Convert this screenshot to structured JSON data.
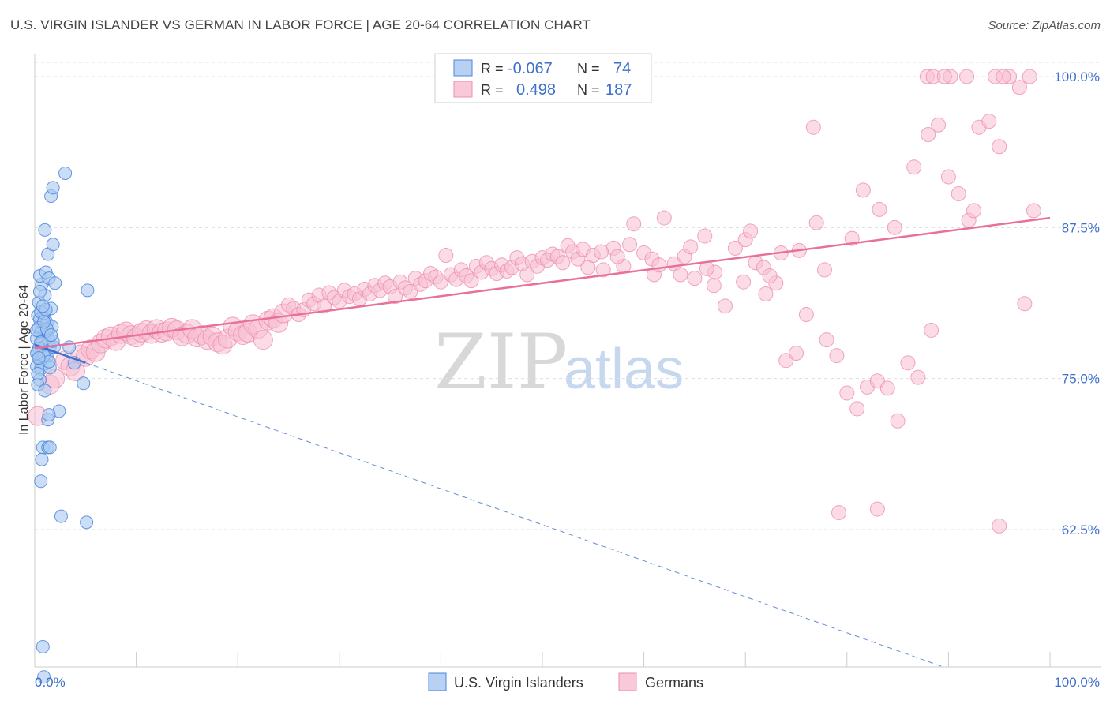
{
  "header": {
    "title": "U.S. VIRGIN ISLANDER VS GERMAN IN LABOR FORCE | AGE 20-64 CORRELATION CHART",
    "source": "Source: ZipAtlas.com"
  },
  "watermark": {
    "part1": "ZIP",
    "part2": "atlas"
  },
  "legend": {
    "rows": [
      {
        "r_label": "R =",
        "r_value": "-0.067",
        "n_label": "N =",
        "n_value": "74",
        "color": "#7aa9e8"
      },
      {
        "r_label": "R =",
        "r_value": "0.498",
        "n_label": "N =",
        "n_value": "187",
        "color": "#f4a6c0"
      }
    ],
    "bottom": [
      "U.S. Virgin Islanders",
      "Germans"
    ]
  },
  "colors": {
    "blue_fill": "#a9c8f0",
    "blue_stroke": "#4a86dc",
    "blue_line": "#3d6fcc",
    "pink_fill": "#f7bfd1",
    "pink_stroke": "#ee8db0",
    "pink_line": "#e8709a",
    "grid": "#dddddd",
    "tick_label": "#3d6fcc"
  },
  "chart_data": {
    "type": "scatter",
    "title": "U.S. VIRGIN ISLANDER VS GERMAN IN LABOR FORCE | AGE 20-64 CORRELATION CHART",
    "xlabel": "",
    "ylabel": "In Labor Force | Age 20-64",
    "xlim": [
      0,
      100
    ],
    "ylim": [
      50,
      101
    ],
    "x_tick_labels": [
      "0.0%",
      "100.0%"
    ],
    "y_ticks": [
      62.5,
      75.0,
      87.5,
      100.0
    ],
    "y_tick_labels": [
      "62.5%",
      "75.0%",
      "87.5%",
      "100.0%"
    ],
    "grid": true,
    "legend_position": "top-center",
    "series": [
      {
        "name": "U.S. Virgin Islanders",
        "R": -0.067,
        "N": 74,
        "trend": {
          "x0": 0,
          "y0": 77.8,
          "x1": 100,
          "y1": 48.0,
          "solid_until_x": 5
        },
        "points": [
          [
            0.3,
            80.2
          ],
          [
            0.5,
            79.9
          ],
          [
            0.8,
            79.4
          ],
          [
            1.0,
            80.0
          ],
          [
            1.2,
            79.6
          ],
          [
            0.4,
            79.2
          ],
          [
            0.6,
            78.8
          ],
          [
            0.9,
            78.5
          ],
          [
            1.3,
            78.9
          ],
          [
            0.2,
            78.3
          ],
          [
            0.7,
            77.9
          ],
          [
            1.1,
            77.7
          ],
          [
            1.5,
            77.6
          ],
          [
            0.3,
            77.3
          ],
          [
            0.8,
            77.0
          ],
          [
            1.2,
            76.8
          ],
          [
            0.5,
            76.5
          ],
          [
            1.0,
            76.2
          ],
          [
            0.2,
            76.0
          ],
          [
            0.6,
            75.8
          ],
          [
            1.4,
            78.2
          ],
          [
            1.7,
            79.3
          ],
          [
            1.9,
            77.6
          ],
          [
            0.9,
            80.4
          ],
          [
            1.6,
            80.8
          ],
          [
            0.4,
            81.3
          ],
          [
            1.0,
            81.9
          ],
          [
            0.7,
            82.8
          ],
          [
            0.5,
            83.5
          ],
          [
            1.1,
            83.8
          ],
          [
            1.4,
            83.3
          ],
          [
            2.0,
            82.9
          ],
          [
            1.3,
            85.3
          ],
          [
            1.8,
            86.1
          ],
          [
            1.0,
            87.3
          ],
          [
            1.6,
            90.1
          ],
          [
            1.8,
            90.8
          ],
          [
            3.0,
            92.0
          ],
          [
            5.2,
            82.3
          ],
          [
            3.4,
            77.6
          ],
          [
            4.8,
            74.6
          ],
          [
            3.9,
            76.3
          ],
          [
            2.4,
            72.3
          ],
          [
            1.3,
            71.6
          ],
          [
            1.4,
            72.0
          ],
          [
            0.8,
            69.3
          ],
          [
            1.3,
            69.3
          ],
          [
            1.5,
            69.3
          ],
          [
            0.7,
            68.3
          ],
          [
            2.6,
            63.6
          ],
          [
            5.1,
            63.1
          ],
          [
            0.6,
            66.5
          ],
          [
            0.8,
            52.8
          ],
          [
            0.9,
            50.3
          ],
          [
            0.5,
            74.9
          ],
          [
            0.3,
            74.5
          ],
          [
            1.0,
            74.0
          ],
          [
            0.6,
            80.5
          ],
          [
            0.2,
            79.0
          ],
          [
            1.8,
            78.1
          ],
          [
            0.4,
            77.5
          ],
          [
            0.9,
            76.9
          ],
          [
            1.5,
            75.9
          ],
          [
            0.3,
            75.4
          ],
          [
            1.1,
            80.7
          ],
          [
            0.8,
            81.0
          ],
          [
            0.5,
            82.2
          ],
          [
            1.2,
            79.1
          ],
          [
            0.6,
            78.0
          ],
          [
            1.4,
            76.4
          ],
          [
            0.2,
            77.1
          ],
          [
            0.9,
            79.7
          ],
          [
            1.6,
            78.6
          ],
          [
            0.4,
            76.7
          ]
        ]
      },
      {
        "name": "Germans",
        "R": 0.498,
        "N": 187,
        "trend": {
          "x0": 0,
          "y0": 77.5,
          "x1": 100,
          "y1": 88.3
        },
        "points": [
          [
            0.3,
            71.9
          ],
          [
            1.5,
            74.5
          ],
          [
            2.0,
            75.0
          ],
          [
            3.0,
            76.5
          ],
          [
            3.5,
            76.0
          ],
          [
            4.0,
            75.6
          ],
          [
            4.5,
            77.0
          ],
          [
            5.0,
            76.8
          ],
          [
            5.5,
            77.4
          ],
          [
            6.0,
            77.2
          ],
          [
            6.5,
            77.9
          ],
          [
            7.0,
            78.3
          ],
          [
            7.5,
            78.5
          ],
          [
            8.0,
            78.1
          ],
          [
            8.5,
            78.7
          ],
          [
            9.0,
            78.9
          ],
          [
            9.5,
            78.6
          ],
          [
            10.0,
            78.4
          ],
          [
            10.5,
            78.8
          ],
          [
            11.0,
            79.0
          ],
          [
            11.5,
            78.7
          ],
          [
            12.0,
            79.1
          ],
          [
            12.5,
            78.8
          ],
          [
            13.0,
            78.9
          ],
          [
            13.5,
            79.2
          ],
          [
            14.0,
            79.0
          ],
          [
            14.5,
            78.5
          ],
          [
            15.0,
            78.7
          ],
          [
            15.5,
            79.1
          ],
          [
            16.0,
            78.4
          ],
          [
            16.5,
            78.6
          ],
          [
            17.0,
            78.2
          ],
          [
            17.5,
            78.5
          ],
          [
            18.0,
            78.0
          ],
          [
            18.5,
            77.8
          ],
          [
            19.0,
            78.3
          ],
          [
            19.5,
            79.3
          ],
          [
            20.0,
            78.9
          ],
          [
            20.5,
            78.6
          ],
          [
            21.0,
            78.8
          ],
          [
            21.5,
            79.5
          ],
          [
            22.0,
            79.1
          ],
          [
            22.5,
            78.2
          ],
          [
            23.0,
            79.8
          ],
          [
            23.5,
            80.0
          ],
          [
            24.0,
            79.6
          ],
          [
            24.5,
            80.4
          ],
          [
            25.0,
            81.1
          ],
          [
            25.5,
            80.8
          ],
          [
            26.0,
            80.3
          ],
          [
            26.5,
            80.7
          ],
          [
            27.0,
            81.5
          ],
          [
            27.5,
            81.2
          ],
          [
            28.0,
            81.9
          ],
          [
            28.5,
            81.0
          ],
          [
            29.0,
            82.1
          ],
          [
            29.5,
            81.7
          ],
          [
            30.0,
            81.4
          ],
          [
            30.5,
            82.3
          ],
          [
            31.0,
            81.8
          ],
          [
            31.5,
            82.0
          ],
          [
            32.0,
            81.6
          ],
          [
            32.5,
            82.4
          ],
          [
            33.0,
            82.0
          ],
          [
            33.5,
            82.7
          ],
          [
            34.0,
            82.3
          ],
          [
            34.5,
            82.9
          ],
          [
            35.0,
            82.6
          ],
          [
            35.5,
            81.8
          ],
          [
            36.0,
            83.0
          ],
          [
            36.5,
            82.5
          ],
          [
            37.0,
            82.2
          ],
          [
            37.5,
            83.3
          ],
          [
            38.0,
            82.8
          ],
          [
            38.5,
            83.1
          ],
          [
            39.0,
            83.7
          ],
          [
            39.5,
            83.4
          ],
          [
            40.0,
            83.0
          ],
          [
            40.5,
            85.2
          ],
          [
            41.0,
            83.6
          ],
          [
            41.5,
            83.2
          ],
          [
            42.0,
            84.0
          ],
          [
            42.5,
            83.5
          ],
          [
            43.0,
            83.1
          ],
          [
            43.5,
            84.3
          ],
          [
            44.0,
            83.8
          ],
          [
            44.5,
            84.6
          ],
          [
            45.0,
            84.1
          ],
          [
            45.5,
            83.7
          ],
          [
            46.0,
            84.4
          ],
          [
            46.5,
            83.9
          ],
          [
            47.0,
            84.2
          ],
          [
            47.5,
            85.0
          ],
          [
            48.0,
            84.5
          ],
          [
            48.5,
            83.6
          ],
          [
            49.0,
            84.7
          ],
          [
            49.5,
            84.3
          ],
          [
            50.0,
            85.0
          ],
          [
            50.5,
            84.8
          ],
          [
            51.0,
            85.3
          ],
          [
            51.5,
            85.1
          ],
          [
            52.0,
            84.6
          ],
          [
            52.5,
            86.0
          ],
          [
            53.0,
            85.5
          ],
          [
            53.5,
            84.9
          ],
          [
            54.0,
            85.7
          ],
          [
            54.5,
            84.2
          ],
          [
            55.0,
            85.2
          ],
          [
            56.0,
            84.0
          ],
          [
            57.0,
            85.8
          ],
          [
            58.0,
            84.3
          ],
          [
            59.0,
            87.8
          ],
          [
            60.0,
            85.4
          ],
          [
            61.0,
            83.6
          ],
          [
            62.0,
            88.3
          ],
          [
            63.0,
            84.5
          ],
          [
            64.0,
            85.1
          ],
          [
            65.0,
            83.3
          ],
          [
            66.0,
            86.8
          ],
          [
            67.0,
            83.8
          ],
          [
            68.0,
            81.0
          ],
          [
            69.0,
            85.8
          ],
          [
            70.0,
            86.5
          ],
          [
            71.0,
            84.6
          ],
          [
            72.0,
            82.0
          ],
          [
            73.0,
            82.9
          ],
          [
            74.0,
            76.5
          ],
          [
            75.0,
            77.1
          ],
          [
            76.0,
            80.3
          ],
          [
            77.0,
            87.9
          ],
          [
            78.0,
            78.2
          ],
          [
            79.0,
            76.9
          ],
          [
            80.0,
            73.8
          ],
          [
            81.0,
            72.5
          ],
          [
            82.0,
            74.3
          ],
          [
            83.0,
            74.8
          ],
          [
            84.0,
            74.2
          ],
          [
            85.0,
            71.5
          ],
          [
            86.0,
            76.3
          ],
          [
            87.0,
            75.1
          ],
          [
            88.0,
            95.2
          ],
          [
            89.0,
            96.0
          ],
          [
            90.0,
            91.7
          ],
          [
            91.0,
            90.3
          ],
          [
            92.0,
            88.1
          ],
          [
            93.0,
            95.8
          ],
          [
            94.0,
            96.3
          ],
          [
            95.0,
            94.2
          ],
          [
            96.0,
            100.0
          ],
          [
            97.0,
            99.1
          ],
          [
            98.0,
            100.0
          ],
          [
            86.6,
            92.5
          ],
          [
            83.2,
            89.0
          ],
          [
            84.7,
            87.5
          ],
          [
            81.6,
            90.6
          ],
          [
            76.7,
            95.8
          ],
          [
            88.3,
            79.0
          ],
          [
            95.0,
            62.8
          ],
          [
            79.2,
            63.9
          ],
          [
            83.0,
            64.2
          ],
          [
            97.5,
            81.2
          ],
          [
            92.5,
            88.9
          ],
          [
            90.2,
            100.0
          ],
          [
            91.8,
            100.0
          ],
          [
            94.6,
            100.0
          ],
          [
            95.4,
            100.0
          ],
          [
            87.9,
            100.0
          ],
          [
            88.5,
            100.0
          ],
          [
            89.6,
            100.0
          ],
          [
            98.4,
            88.9
          ],
          [
            57.4,
            85.1
          ],
          [
            60.8,
            84.9
          ],
          [
            63.6,
            83.6
          ],
          [
            66.2,
            84.1
          ],
          [
            69.8,
            83.0
          ],
          [
            71.8,
            84.2
          ],
          [
            73.5,
            85.4
          ],
          [
            55.8,
            85.5
          ],
          [
            58.6,
            86.1
          ],
          [
            61.5,
            84.4
          ],
          [
            64.6,
            85.9
          ],
          [
            66.9,
            82.7
          ],
          [
            70.5,
            87.2
          ],
          [
            72.4,
            83.5
          ],
          [
            75.3,
            85.6
          ],
          [
            77.8,
            84.0
          ],
          [
            80.5,
            86.6
          ]
        ]
      }
    ]
  }
}
